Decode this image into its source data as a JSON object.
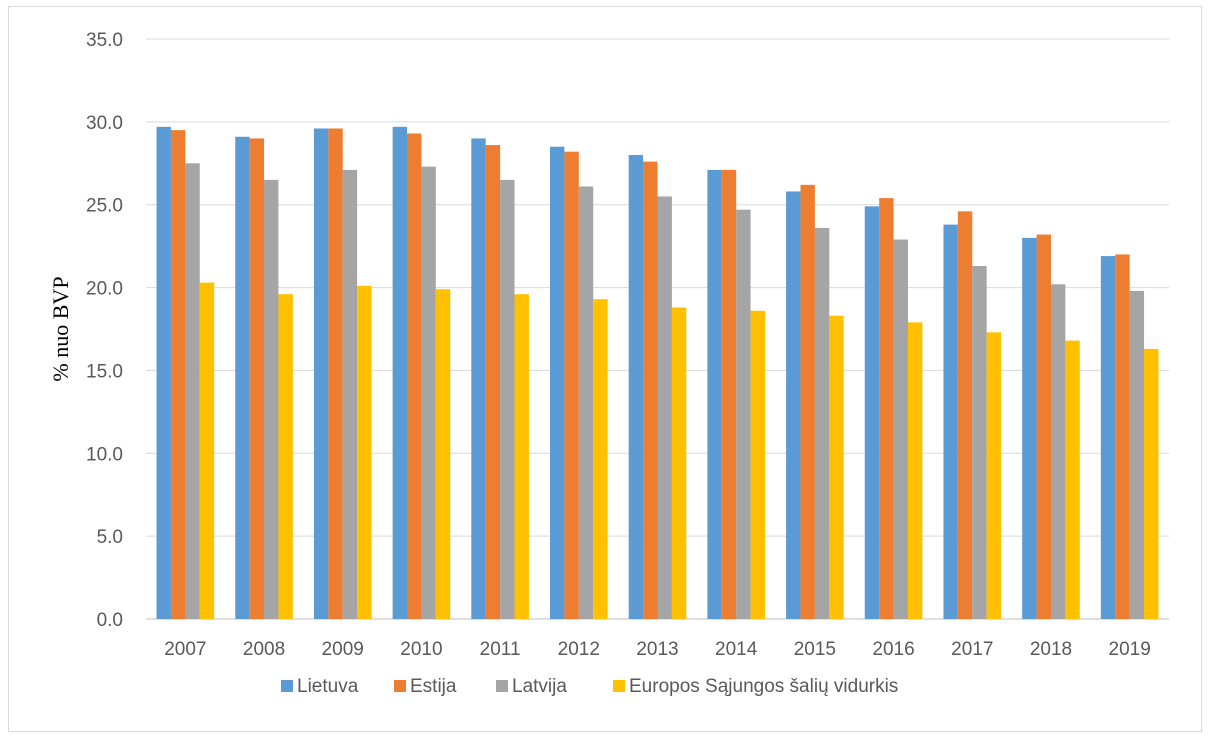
{
  "chart_data": {
    "type": "bar",
    "title": "",
    "xlabel": "",
    "ylabel": "% nuo BVP",
    "ylim": [
      0,
      35
    ],
    "ytick_step": 5,
    "ytick_decimals": 1,
    "grid": true,
    "legend_position": "bottom",
    "categories": [
      "2007",
      "2008",
      "2009",
      "2010",
      "2011",
      "2012",
      "2013",
      "2014",
      "2015",
      "2016",
      "2017",
      "2018",
      "2019"
    ],
    "series": [
      {
        "name": "Lietuva",
        "color": "#5b9bd5",
        "values": [
          29.7,
          29.1,
          29.6,
          29.7,
          29.0,
          28.5,
          28.0,
          27.1,
          25.8,
          24.9,
          23.8,
          23.0,
          21.9
        ]
      },
      {
        "name": "Estija",
        "color": "#ed7d31",
        "values": [
          29.5,
          29.0,
          29.6,
          29.3,
          28.6,
          28.2,
          27.6,
          27.1,
          26.2,
          25.4,
          24.6,
          23.2,
          22.0
        ]
      },
      {
        "name": "Latvija",
        "color": "#a5a5a5",
        "values": [
          27.5,
          26.5,
          27.1,
          27.3,
          26.5,
          26.1,
          25.5,
          24.7,
          23.6,
          22.9,
          21.3,
          20.2,
          19.8
        ]
      },
      {
        "name": "Europos Sąjungos šalių vidurkis",
        "color": "#ffc000",
        "values": [
          20.3,
          19.6,
          20.1,
          19.9,
          19.6,
          19.3,
          18.8,
          18.6,
          18.3,
          17.9,
          17.3,
          16.8,
          16.3
        ]
      }
    ]
  }
}
